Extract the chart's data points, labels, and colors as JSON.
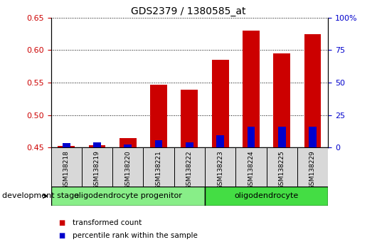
{
  "title": "GDS2379 / 1380585_at",
  "samples": [
    "GSM138218",
    "GSM138219",
    "GSM138220",
    "GSM138221",
    "GSM138222",
    "GSM138223",
    "GSM138224",
    "GSM138225",
    "GSM138229"
  ],
  "transformed_count": [
    0.452,
    0.453,
    0.464,
    0.547,
    0.539,
    0.585,
    0.63,
    0.595,
    0.624
  ],
  "percentile_rank": [
    3.5,
    3.8,
    2.5,
    5.5,
    4.0,
    9.5,
    16.0,
    16.0,
    16.0
  ],
  "ylim_left": [
    0.45,
    0.65
  ],
  "ylim_right": [
    0,
    100
  ],
  "yticks_left": [
    0.45,
    0.5,
    0.55,
    0.6,
    0.65
  ],
  "yticks_right": [
    0,
    25,
    50,
    75,
    100
  ],
  "ytick_labels_right": [
    "0",
    "25",
    "50",
    "75",
    "100%"
  ],
  "bar_color_red": "#cc0000",
  "bar_color_blue": "#0000cc",
  "bar_width": 0.55,
  "groups": [
    {
      "label": "oligodendrocyte progenitor",
      "indices": [
        0,
        1,
        2,
        3,
        4
      ],
      "color": "#88ee88"
    },
    {
      "label": "oligodendrocyte",
      "indices": [
        5,
        6,
        7,
        8
      ],
      "color": "#44dd44"
    }
  ],
  "group_label_prefix": "development stage",
  "legend_items": [
    {
      "label": "transformed count",
      "color": "#cc0000"
    },
    {
      "label": "percentile rank within the sample",
      "color": "#0000cc"
    }
  ],
  "left_tick_color": "#cc0000",
  "right_tick_color": "#0000cc",
  "sample_bg_color": "#d8d8d8",
  "plot_bg": "#ffffff"
}
